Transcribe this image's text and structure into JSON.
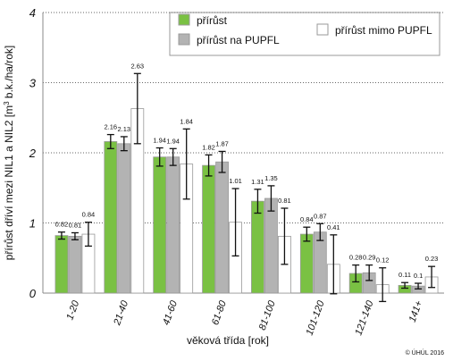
{
  "chart_data": {
    "type": "bar",
    "y_label_parts": [
      "přírůst dříví mezi NIL1 a NIL2 [m",
      "3",
      " b.k./ha/rok]"
    ],
    "x_label": "věková třída [rok]",
    "credit": "© ÚHÚL 2016",
    "categories": [
      "1-20",
      "21-40",
      "41-60",
      "61-80",
      "81-100",
      "101-120",
      "121-140",
      "141+"
    ],
    "series": [
      {
        "name": "přírůst",
        "color": "#7ac143",
        "values": [
          0.82,
          2.16,
          1.94,
          1.82,
          1.31,
          0.84,
          0.28,
          0.11
        ],
        "errors": [
          0.05,
          0.1,
          0.13,
          0.15,
          0.17,
          0.1,
          0.12,
          0.04
        ]
      },
      {
        "name": "přírůst na PUPFL",
        "color": "#b3b3b3",
        "values": [
          0.81,
          2.13,
          1.94,
          1.87,
          1.35,
          0.87,
          0.29,
          0.1
        ],
        "errors": [
          0.05,
          0.1,
          0.12,
          0.15,
          0.18,
          0.12,
          0.11,
          0.04
        ]
      },
      {
        "name": "přírůst mimo PUPFL",
        "color": "#ffffff",
        "values": [
          0.84,
          2.63,
          1.84,
          1.01,
          0.81,
          0.41,
          0.12,
          0.23
        ],
        "errors": [
          0.17,
          0.5,
          0.5,
          0.48,
          0.4,
          0.42,
          0.24,
          0.15
        ]
      }
    ],
    "ylim": [
      0,
      4
    ],
    "yticks": [
      0,
      1,
      2,
      3,
      4
    ],
    "grid": true,
    "legend": "top-right"
  }
}
